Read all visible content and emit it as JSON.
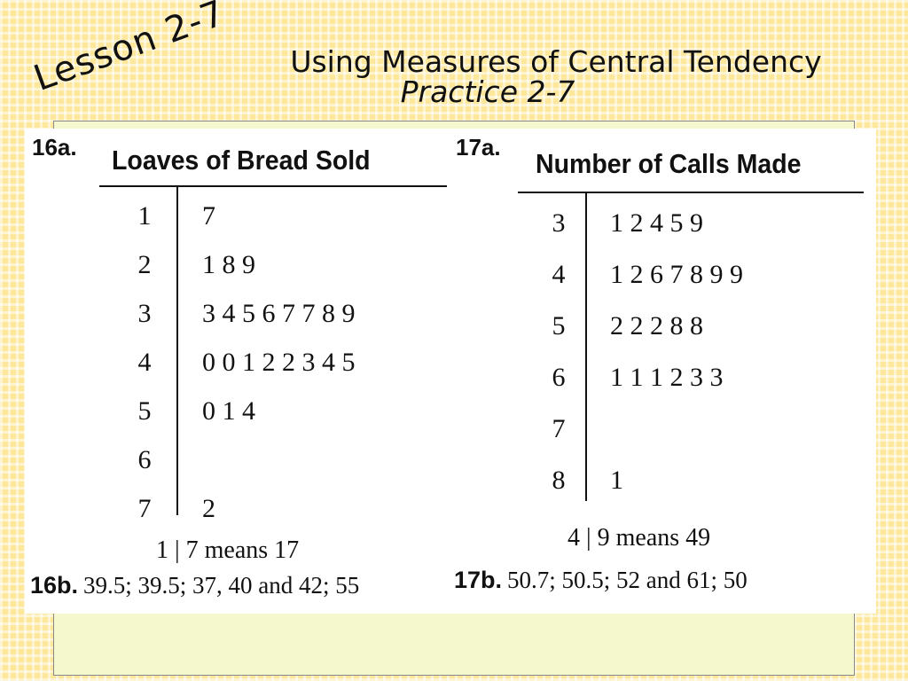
{
  "header": {
    "lesson": "Lesson 2-7",
    "title": "Using Measures of Central Tendency",
    "subtitle": "Practice 2-7"
  },
  "problem16": {
    "label": "16a.",
    "table_title": "Loaves of Bread Sold",
    "rows": [
      {
        "stem": "1",
        "leaves": "7"
      },
      {
        "stem": "2",
        "leaves": "1 8 9"
      },
      {
        "stem": "3",
        "leaves": "3 4 5 6 7 7 8 9"
      },
      {
        "stem": "4",
        "leaves": "0 0 1 2 2 3 4 5"
      },
      {
        "stem": "5",
        "leaves": "0 1 4"
      },
      {
        "stem": "6",
        "leaves": ""
      },
      {
        "stem": "7",
        "leaves": "2"
      }
    ],
    "key": "1 | 7 means 17",
    "answer_label": "16b.",
    "answer": "39.5; 39.5; 37, 40 and 42; 55"
  },
  "problem17": {
    "label": "17a.",
    "table_title": "Number of Calls Made",
    "rows": [
      {
        "stem": "3",
        "leaves": "1 2 4 5 9"
      },
      {
        "stem": "4",
        "leaves": "1 2 6 7 8 9 9"
      },
      {
        "stem": "5",
        "leaves": "2 2 2 8 8"
      },
      {
        "stem": "6",
        "leaves": "1 1 1 2 3 3"
      },
      {
        "stem": "7",
        "leaves": ""
      },
      {
        "stem": "8",
        "leaves": "1"
      }
    ],
    "key": "4 | 9 means 49",
    "answer_label": "17b.",
    "answer": "50.7; 50.5; 52 and 61; 50"
  }
}
